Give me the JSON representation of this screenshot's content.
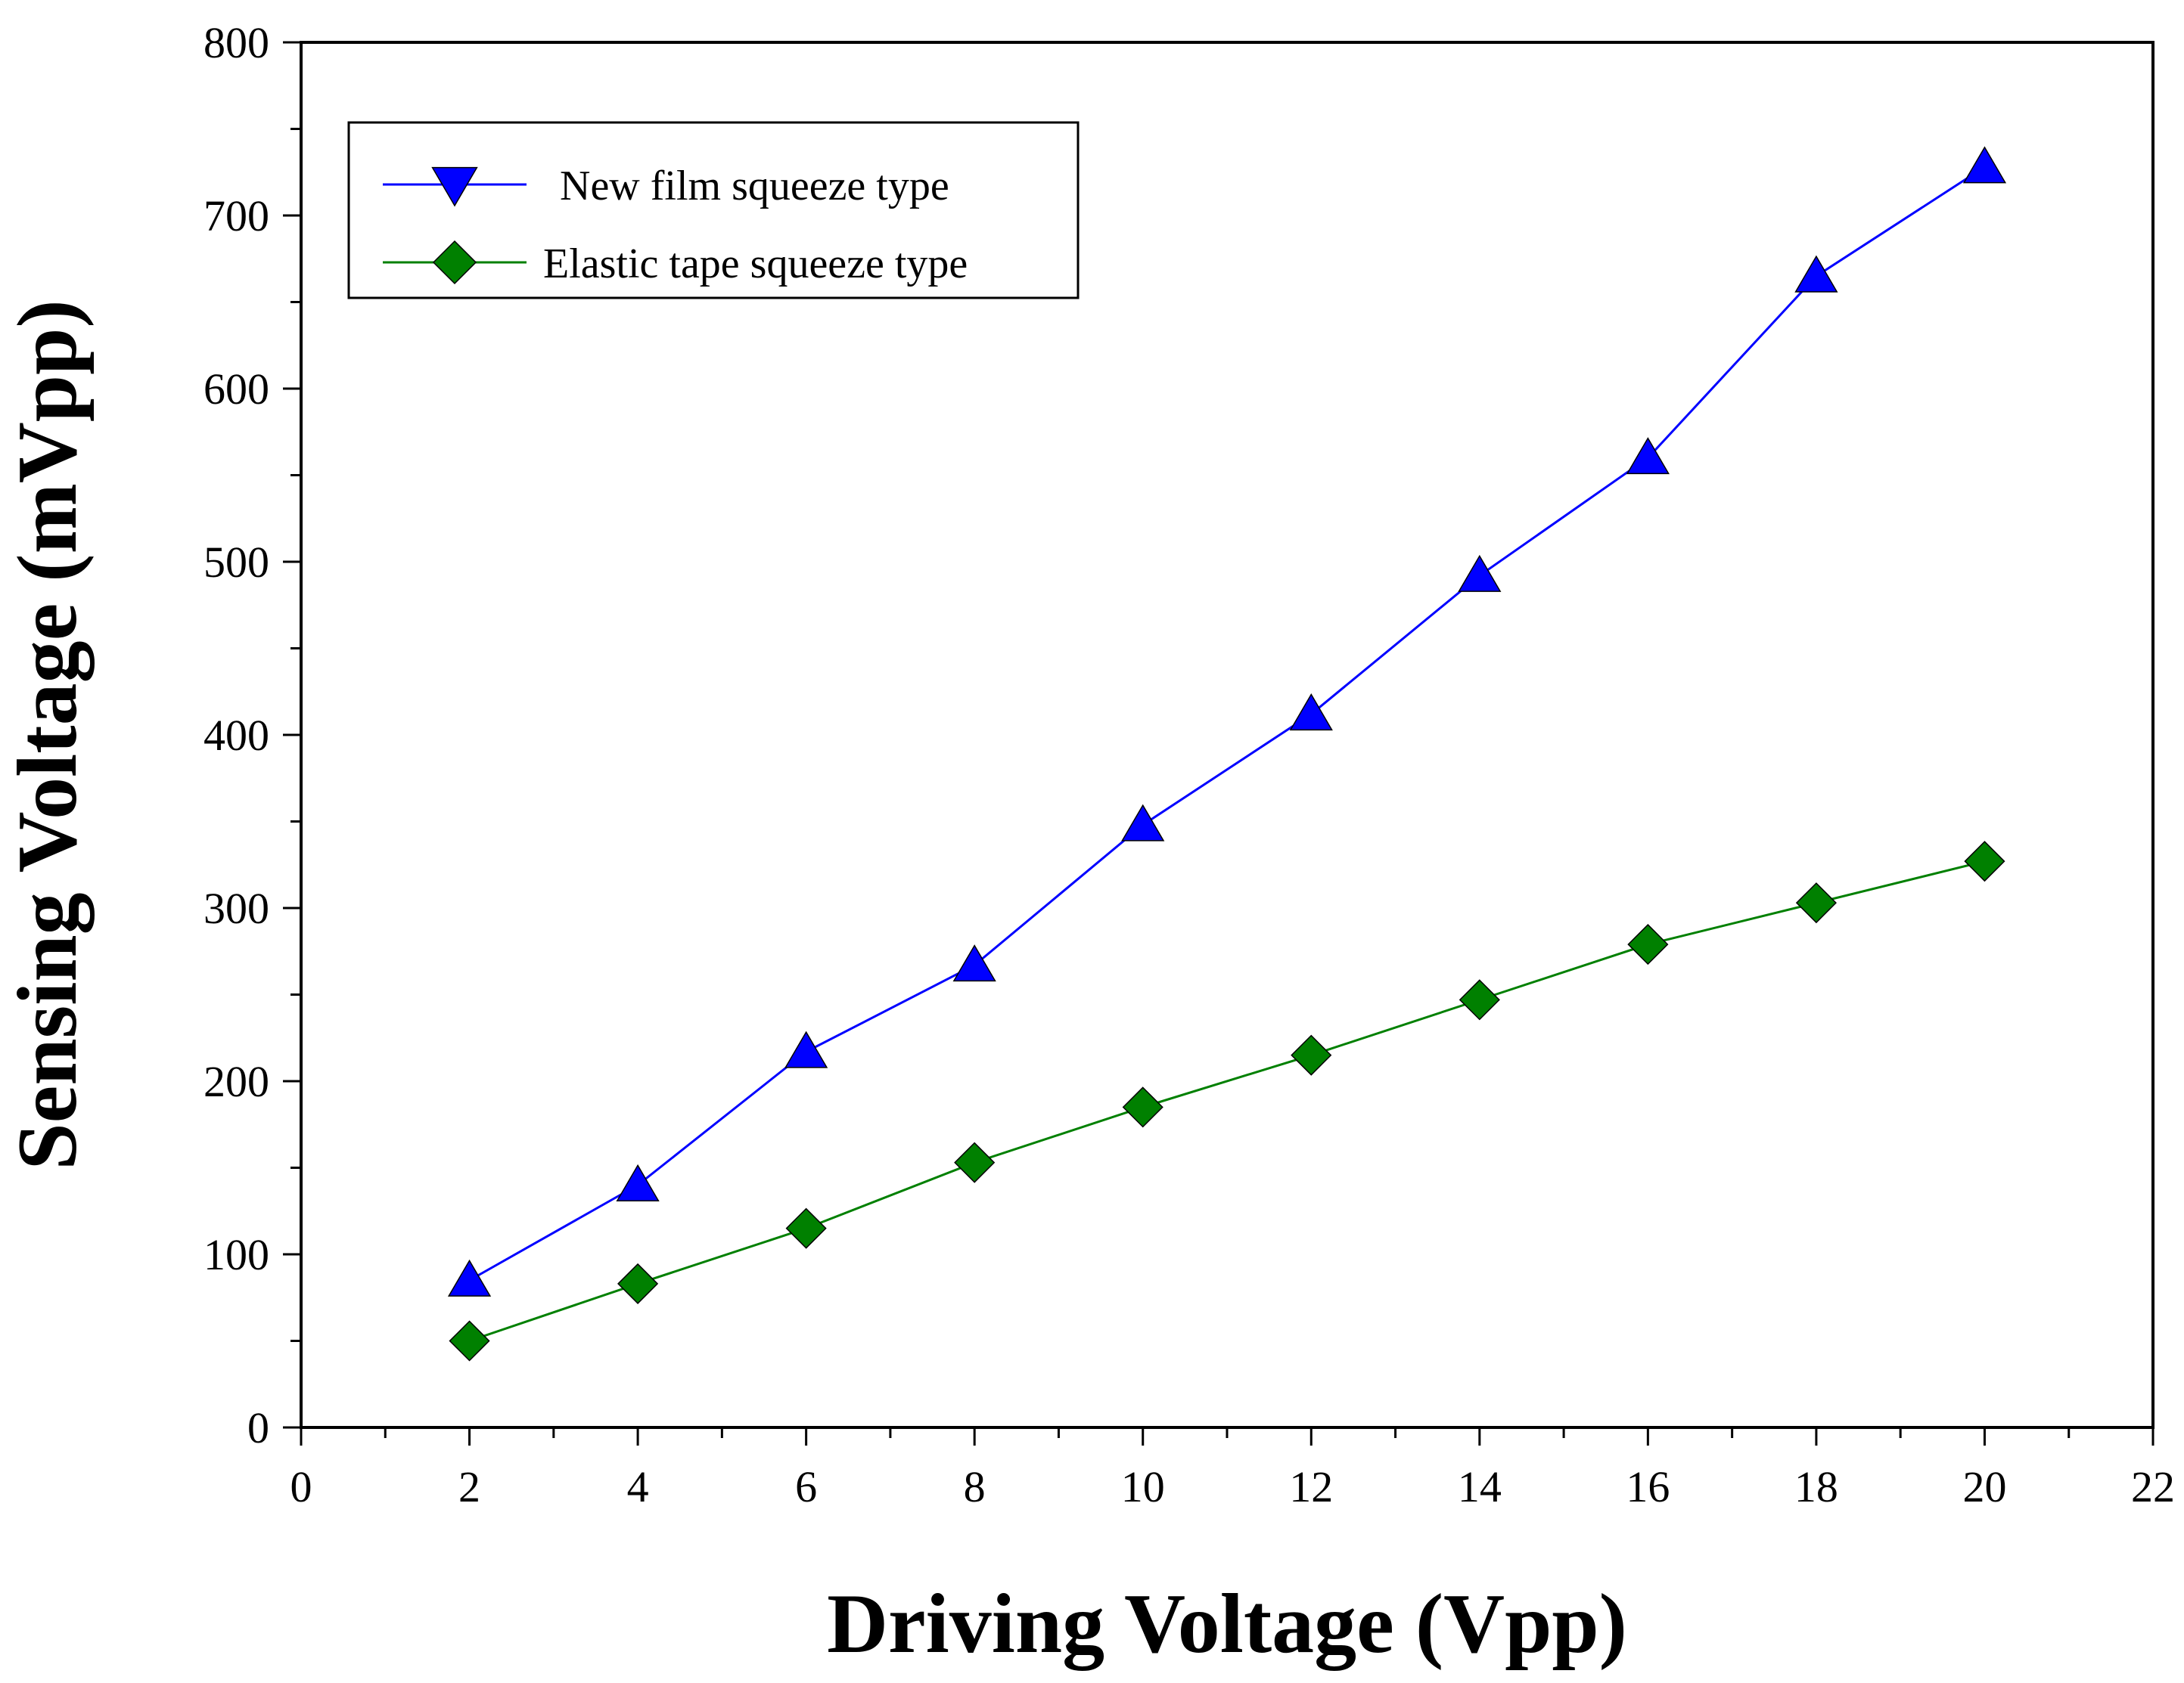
{
  "chart_data": {
    "type": "line",
    "title": "",
    "xlabel": "Driving Voltage (Vpp)",
    "ylabel": "Sensing Voltage (mVpp)",
    "xlim": [
      0,
      22
    ],
    "ylim": [
      0,
      800
    ],
    "x_ticks": [
      0,
      2,
      4,
      6,
      8,
      10,
      12,
      14,
      16,
      18,
      20,
      22
    ],
    "y_ticks": [
      0,
      100,
      200,
      300,
      400,
      500,
      600,
      700,
      800
    ],
    "grid": false,
    "legend_position": "top-left",
    "series": [
      {
        "name": "New film squeeze type",
        "color": "#0000ff",
        "marker": "triangle",
        "x": [
          2,
          4,
          6,
          8,
          10,
          12,
          14,
          16,
          18,
          20
        ],
        "values": [
          85,
          140,
          217,
          267,
          348,
          412,
          492,
          560,
          665,
          728
        ]
      },
      {
        "name": "Elastic tape squeeze type",
        "color": "#008000",
        "marker": "diamond",
        "x": [
          2,
          4,
          6,
          8,
          10,
          12,
          14,
          16,
          18,
          20
        ],
        "values": [
          50,
          83,
          115,
          153,
          185,
          215,
          247,
          279,
          303,
          327
        ]
      }
    ]
  }
}
